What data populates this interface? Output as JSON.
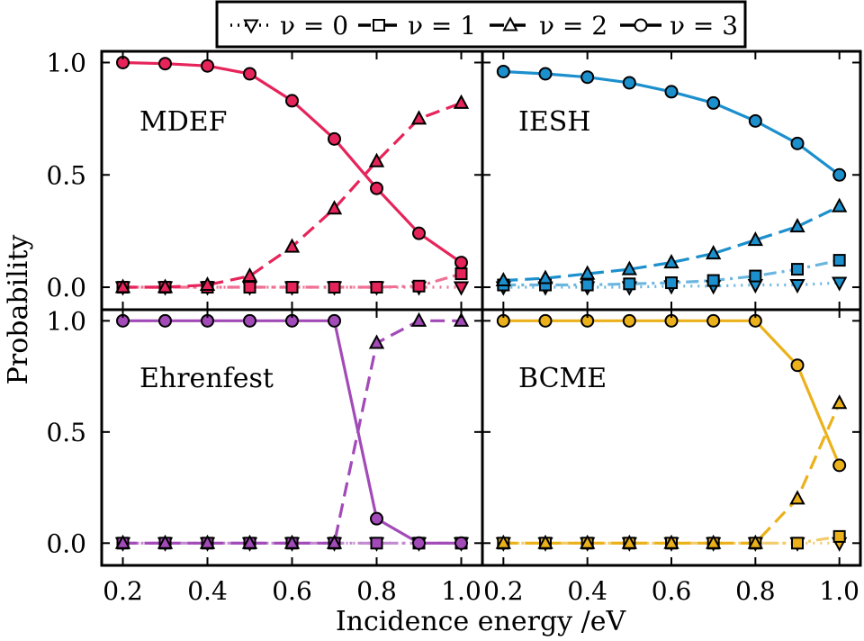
{
  "chart_data": {
    "type": "line",
    "xlabel": "Incidence energy /eV",
    "ylabel": "Probability",
    "xlim": [
      0.15,
      1.05
    ],
    "ylim": [
      -0.1,
      1.05
    ],
    "x": [
      0.2,
      0.3,
      0.4,
      0.5,
      0.6,
      0.7,
      0.8,
      0.9,
      1.0
    ],
    "x_tick_labels": [
      "0.2",
      "0.4",
      "0.6",
      "0.8",
      "1.0"
    ],
    "x_tick_values": [
      0.2,
      0.4,
      0.6,
      0.8,
      1.0
    ],
    "y_tick_labels": [
      "0.0",
      "0.5",
      "1.0"
    ],
    "y_tick_values": [
      0.0,
      0.5,
      1.0
    ],
    "legend": {
      "placement": "top",
      "entries": [
        {
          "label": "ν = 0",
          "marker": "triangle-down",
          "linestyle": "dotted"
        },
        {
          "label": "ν = 1",
          "marker": "square",
          "linestyle": "dashdot"
        },
        {
          "label": "ν = 2",
          "marker": "triangle-up",
          "linestyle": "dashed"
        },
        {
          "label": "ν = 3",
          "marker": "circle",
          "linestyle": "solid"
        }
      ]
    },
    "panels": [
      {
        "label": "MDEF",
        "color": "#e6245a",
        "series": [
          {
            "name": "ν = 0",
            "values": [
              0.0,
              0.0,
              0.0,
              0.0,
              0.0,
              0.0,
              0.0,
              0.0,
              0.0
            ]
          },
          {
            "name": "ν = 1",
            "values": [
              0.0,
              0.0,
              0.0,
              0.0,
              0.0,
              0.0,
              0.0,
              0.005,
              0.06
            ]
          },
          {
            "name": "ν = 2",
            "values": [
              0.0,
              0.0,
              0.01,
              0.05,
              0.18,
              0.35,
              0.56,
              0.75,
              0.82
            ]
          },
          {
            "name": "ν = 3",
            "values": [
              1.0,
              0.995,
              0.985,
              0.95,
              0.83,
              0.66,
              0.44,
              0.24,
              0.11
            ]
          }
        ]
      },
      {
        "label": "IESH",
        "color": "#1c8fcd",
        "series": [
          {
            "name": "ν = 0",
            "values": [
              0.0,
              0.0,
              0.0,
              0.0,
              0.005,
              0.005,
              0.01,
              0.01,
              0.02
            ]
          },
          {
            "name": "ν = 1",
            "values": [
              0.01,
              0.01,
              0.01,
              0.015,
              0.02,
              0.03,
              0.05,
              0.08,
              0.12
            ]
          },
          {
            "name": "ν = 2",
            "values": [
              0.03,
              0.04,
              0.06,
              0.08,
              0.11,
              0.15,
              0.21,
              0.27,
              0.36
            ]
          },
          {
            "name": "ν = 3",
            "values": [
              0.96,
              0.95,
              0.935,
              0.91,
              0.87,
              0.82,
              0.74,
              0.64,
              0.5
            ]
          }
        ]
      },
      {
        "label": "Ehrenfest",
        "color": "#a24ab8",
        "series": [
          {
            "name": "ν = 0",
            "values": [
              0.0,
              0.0,
              0.0,
              0.0,
              0.0,
              0.0,
              0.0,
              0.0,
              0.0
            ]
          },
          {
            "name": "ν = 1",
            "values": [
              0.0,
              0.0,
              0.0,
              0.0,
              0.0,
              0.0,
              0.0,
              0.0,
              0.0
            ]
          },
          {
            "name": "ν = 2",
            "values": [
              0.0,
              0.0,
              0.0,
              0.0,
              0.0,
              0.0,
              0.9,
              1.0,
              1.0
            ]
          },
          {
            "name": "ν = 3",
            "values": [
              1.0,
              1.0,
              1.0,
              1.0,
              1.0,
              1.0,
              0.11,
              0.0,
              0.0
            ]
          }
        ]
      },
      {
        "label": "BCME",
        "color": "#ebb11a",
        "series": [
          {
            "name": "ν = 0",
            "values": [
              0.0,
              0.0,
              0.0,
              0.0,
              0.0,
              0.0,
              0.0,
              0.0,
              0.0
            ]
          },
          {
            "name": "ν = 1",
            "values": [
              0.0,
              0.0,
              0.0,
              0.0,
              0.0,
              0.0,
              0.0,
              0.0,
              0.03
            ]
          },
          {
            "name": "ν = 2",
            "values": [
              0.0,
              0.0,
              0.0,
              0.0,
              0.0,
              0.0,
              0.0,
              0.2,
              0.63
            ]
          },
          {
            "name": "ν = 3",
            "values": [
              1.0,
              1.0,
              1.0,
              1.0,
              1.0,
              1.0,
              1.0,
              0.8,
              0.35
            ]
          }
        ]
      }
    ]
  }
}
